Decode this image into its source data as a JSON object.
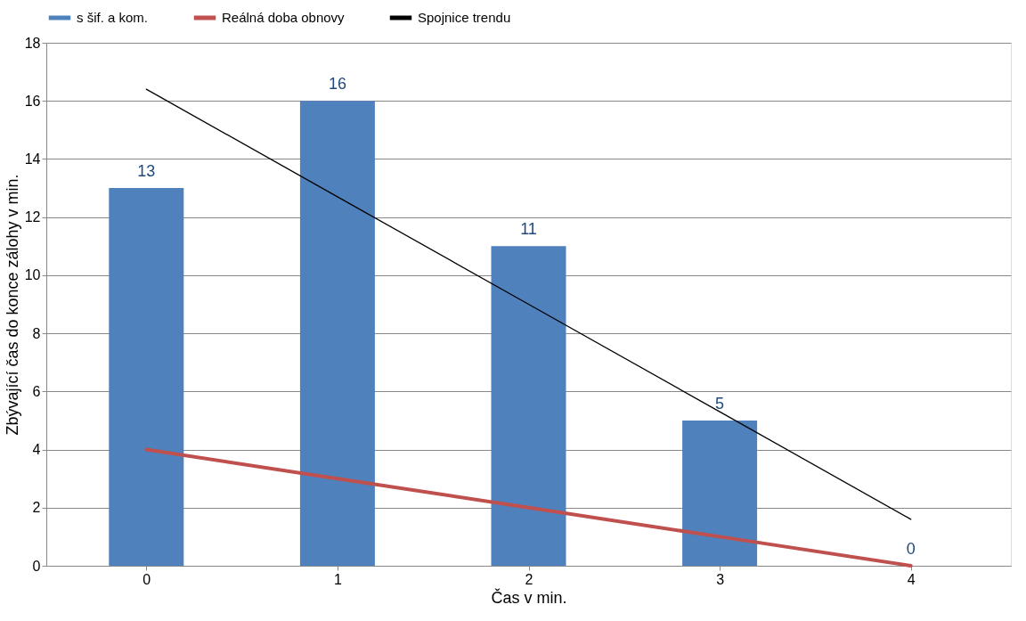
{
  "chart_data": {
    "type": "bar",
    "categories": [
      "0",
      "1",
      "2",
      "3",
      "4"
    ],
    "xlabel": "Čas v min.",
    "ylabel": "Zbývající čas do konce zálohy v min.",
    "series": [
      {
        "name": "s šif. a kom.",
        "color": "#4f81bd",
        "values": [
          13,
          16,
          11,
          5,
          0
        ],
        "value_labels": [
          "13",
          "16",
          "11",
          "5",
          "0"
        ]
      },
      {
        "name": "Reálná doba obnovy",
        "type": "line",
        "color": "#c0504d",
        "values": [
          4,
          3,
          2,
          1,
          0
        ]
      },
      {
        "name": "Spojnice trendu",
        "type": "line",
        "color": "#000000",
        "values": [
          16.4,
          12.7,
          9.0,
          5.3,
          1.6
        ]
      }
    ],
    "ylim": [
      0,
      18
    ],
    "yticks": [
      0,
      2,
      4,
      6,
      8,
      10,
      12,
      14,
      16,
      18
    ],
    "grid": "y",
    "legend": "top"
  }
}
